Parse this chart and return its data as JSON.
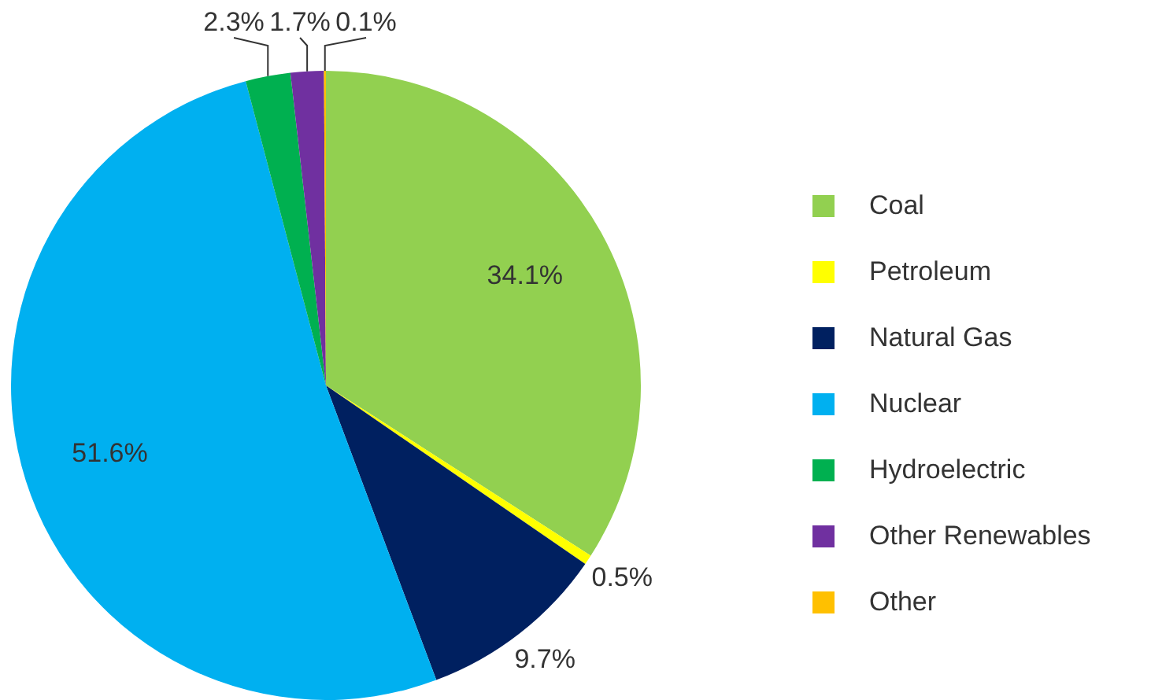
{
  "chart_data": {
    "type": "pie",
    "categories": [
      "Coal",
      "Petroleum",
      "Natural Gas",
      "Nuclear",
      "Hydroelectric",
      "Other Renewables",
      "Other"
    ],
    "values": [
      34.1,
      0.5,
      9.7,
      51.6,
      2.3,
      1.7,
      0.1
    ],
    "colors": [
      "#92d050",
      "#ffff00",
      "#002060",
      "#00b0f0",
      "#00b050",
      "#7030a0",
      "#ffc000"
    ],
    "value_labels": [
      "34.1%",
      "0.5%",
      "9.7%",
      "51.6%",
      "2.3%",
      "1.7%",
      "0.1%"
    ],
    "legend": "right"
  }
}
